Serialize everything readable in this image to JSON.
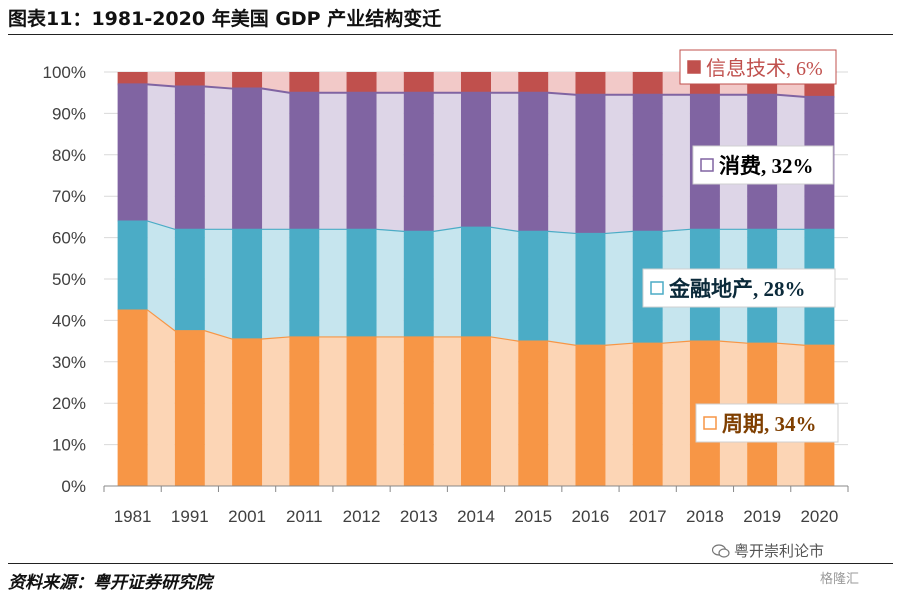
{
  "figure": {
    "title": "图表11：1981-2020 年美国 GDP 产业结构变迁",
    "source": "资料来源：粤开证券研究院",
    "watermark": "粤开崇利论市",
    "watermark_sub": "格隆汇"
  },
  "colors": {
    "cycle_dark": "#F79646",
    "cycle_light": "#FCD5B5",
    "finance_dark": "#4BACC6",
    "finance_light": "#C6E5EE",
    "consumer_dark": "#8064A2",
    "consumer_light": "#DDD5E7",
    "it_dark": "#C0504D",
    "it_light": "#F2C9C8",
    "grid": "#D9D9D9",
    "axis": "#888888"
  },
  "chart_data": {
    "type": "bar",
    "stacked": true,
    "categories": [
      "1981",
      "1991",
      "2001",
      "2011",
      "2012",
      "2013",
      "2014",
      "2015",
      "2016",
      "2017",
      "2018",
      "2019",
      "2020"
    ],
    "ylim": [
      0,
      100
    ],
    "yticks": [
      "0%",
      "10%",
      "20%",
      "30%",
      "40%",
      "50%",
      "60%",
      "70%",
      "80%",
      "90%",
      "100%"
    ],
    "series": [
      {
        "name": "周期",
        "values": [
          42.5,
          37.5,
          35.5,
          36,
          36,
          36,
          36,
          35,
          34,
          34.5,
          35,
          34.5,
          34
        ]
      },
      {
        "name": "金融地产",
        "values": [
          21.5,
          24.5,
          26.5,
          26,
          26,
          25.5,
          26.5,
          26.5,
          27,
          27,
          27,
          27.5,
          28
        ]
      },
      {
        "name": "消费",
        "values": [
          33,
          34.5,
          34,
          33,
          33,
          33.5,
          32.5,
          33.5,
          33.5,
          33,
          32.5,
          32.5,
          32
        ]
      },
      {
        "name": "信息技术",
        "values": [
          3,
          3.5,
          4,
          5,
          5,
          5,
          5,
          5,
          5.5,
          5.5,
          5.5,
          5.5,
          6
        ]
      }
    ],
    "labels": [
      {
        "series": "周期",
        "text": "周期, 34%"
      },
      {
        "series": "金融地产",
        "text": "金融地产, 28%"
      },
      {
        "series": "消费",
        "text": "消费, 32%"
      },
      {
        "series": "信息技术",
        "text": "信息技术, 6%"
      }
    ]
  }
}
